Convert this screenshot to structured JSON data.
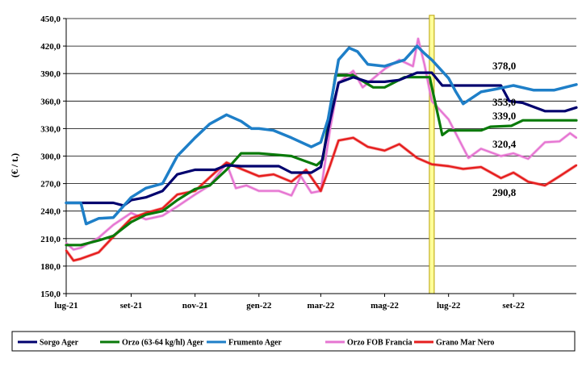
{
  "chart_data": {
    "type": "line",
    "title": "",
    "xlabel": "",
    "ylabel": "(€ / t.)",
    "ylim": [
      150,
      450
    ],
    "yticks": [
      "450,0",
      "420,0",
      "390,0",
      "360,0",
      "330,0",
      "300,0",
      "270,0",
      "240,0",
      "210,0",
      "180,0",
      "150,0"
    ],
    "xticks": [
      "lug-21",
      "set-21",
      "nov-21",
      "gen-22",
      "mar-22",
      "mag-22",
      "lug-22",
      "set-22"
    ],
    "x_range": [
      "2021-07-01",
      "2022-10-31"
    ],
    "marker": {
      "date": "2022-06-15",
      "color": "#FFFF99",
      "stroke": "#B8A000"
    },
    "grid": "horizontal",
    "legend_position": "bottom",
    "series": [
      {
        "name": "Sorgo Ager",
        "color": "#00006E",
        "end_label": "353,0",
        "data": [
          [
            "2021-07-01",
            249
          ],
          [
            "2021-08-01",
            249
          ],
          [
            "2021-08-15",
            249
          ],
          [
            "2021-08-25",
            246
          ],
          [
            "2021-09-01",
            252
          ],
          [
            "2021-09-15",
            255
          ],
          [
            "2021-10-01",
            262
          ],
          [
            "2021-10-15",
            280
          ],
          [
            "2021-11-01",
            285
          ],
          [
            "2021-11-20",
            285
          ],
          [
            "2021-12-01",
            290
          ],
          [
            "2021-12-15",
            289
          ],
          [
            "2022-01-01",
            289
          ],
          [
            "2022-01-20",
            289
          ],
          [
            "2022-02-01",
            282
          ],
          [
            "2022-02-20",
            282
          ],
          [
            "2022-03-01",
            288
          ],
          [
            "2022-03-10",
            340
          ],
          [
            "2022-03-18",
            380
          ],
          [
            "2022-04-01",
            386
          ],
          [
            "2022-04-15",
            381
          ],
          [
            "2022-05-01",
            381
          ],
          [
            "2022-05-15",
            383
          ],
          [
            "2022-06-01",
            391
          ],
          [
            "2022-06-15",
            391
          ],
          [
            "2022-06-25",
            377
          ],
          [
            "2022-07-15",
            377
          ],
          [
            "2022-08-20",
            377
          ],
          [
            "2022-08-28",
            360
          ],
          [
            "2022-09-10",
            358
          ],
          [
            "2022-10-01",
            349
          ],
          [
            "2022-10-20",
            349
          ],
          [
            "2022-10-31",
            353
          ]
        ]
      },
      {
        "name": "Orzo (63-64 kg/hl) Ager",
        "color": "#0A7A0A",
        "end_label": "339,0",
        "data": [
          [
            "2021-07-01",
            203
          ],
          [
            "2021-07-15",
            203
          ],
          [
            "2021-08-01",
            208
          ],
          [
            "2021-08-15",
            213
          ],
          [
            "2021-09-01",
            228
          ],
          [
            "2021-09-15",
            236
          ],
          [
            "2021-10-01",
            240
          ],
          [
            "2021-10-15",
            252
          ],
          [
            "2021-11-01",
            264
          ],
          [
            "2021-11-15",
            268
          ],
          [
            "2021-12-01",
            285
          ],
          [
            "2021-12-15",
            303
          ],
          [
            "2022-01-01",
            303
          ],
          [
            "2022-02-01",
            300
          ],
          [
            "2022-02-25",
            290
          ],
          [
            "2022-03-03",
            296
          ],
          [
            "2022-03-15",
            388
          ],
          [
            "2022-04-01",
            388
          ],
          [
            "2022-04-20",
            375
          ],
          [
            "2022-05-01",
            375
          ],
          [
            "2022-05-20",
            386
          ],
          [
            "2022-06-01",
            386
          ],
          [
            "2022-06-13",
            386
          ],
          [
            "2022-06-25",
            323
          ],
          [
            "2022-07-01",
            328
          ],
          [
            "2022-08-01",
            328
          ],
          [
            "2022-08-10",
            332
          ],
          [
            "2022-08-30",
            333
          ],
          [
            "2022-09-10",
            339
          ],
          [
            "2022-10-31",
            339
          ]
        ]
      },
      {
        "name": "Frumento Ager",
        "color": "#1E7FC8",
        "end_label": "378,0",
        "data": [
          [
            "2021-07-01",
            249
          ],
          [
            "2021-07-15",
            249
          ],
          [
            "2021-07-20",
            226
          ],
          [
            "2021-08-01",
            232
          ],
          [
            "2021-08-15",
            233
          ],
          [
            "2021-09-01",
            255
          ],
          [
            "2021-09-15",
            265
          ],
          [
            "2021-10-01",
            270
          ],
          [
            "2021-10-15",
            300
          ],
          [
            "2021-11-01",
            320
          ],
          [
            "2021-11-15",
            335
          ],
          [
            "2021-12-01",
            345
          ],
          [
            "2021-12-15",
            338
          ],
          [
            "2021-12-25",
            330
          ],
          [
            "2022-01-01",
            330
          ],
          [
            "2022-01-15",
            328
          ],
          [
            "2022-02-01",
            320
          ],
          [
            "2022-02-20",
            310
          ],
          [
            "2022-03-01",
            315
          ],
          [
            "2022-03-08",
            340
          ],
          [
            "2022-03-18",
            405
          ],
          [
            "2022-03-28",
            418
          ],
          [
            "2022-04-05",
            414
          ],
          [
            "2022-04-15",
            400
          ],
          [
            "2022-05-01",
            398
          ],
          [
            "2022-05-20",
            405
          ],
          [
            "2022-06-01",
            420
          ],
          [
            "2022-06-08",
            412
          ],
          [
            "2022-06-15",
            405
          ],
          [
            "2022-07-01",
            385
          ],
          [
            "2022-07-08",
            370
          ],
          [
            "2022-07-15",
            357
          ],
          [
            "2022-08-01",
            370
          ],
          [
            "2022-08-15",
            373
          ],
          [
            "2022-09-01",
            377
          ],
          [
            "2022-09-20",
            372
          ],
          [
            "2022-10-10",
            372
          ],
          [
            "2022-10-31",
            378
          ]
        ]
      },
      {
        "name": "Orzo FOB Francia",
        "color": "#E675D2",
        "end_label": "320,4",
        "data": [
          [
            "2021-07-01",
            205
          ],
          [
            "2021-07-08",
            198
          ],
          [
            "2021-07-15",
            200
          ],
          [
            "2021-08-01",
            211
          ],
          [
            "2021-08-15",
            225
          ],
          [
            "2021-09-01",
            238
          ],
          [
            "2021-09-15",
            231
          ],
          [
            "2021-10-01",
            235
          ],
          [
            "2021-10-15",
            245
          ],
          [
            "2021-11-01",
            258
          ],
          [
            "2021-11-15",
            268
          ],
          [
            "2021-12-01",
            292
          ],
          [
            "2021-12-10",
            265
          ],
          [
            "2021-12-20",
            268
          ],
          [
            "2022-01-01",
            262
          ],
          [
            "2022-01-20",
            262
          ],
          [
            "2022-02-01",
            257
          ],
          [
            "2022-02-10",
            278
          ],
          [
            "2022-02-20",
            260
          ],
          [
            "2022-03-01",
            262
          ],
          [
            "2022-03-10",
            330
          ],
          [
            "2022-03-18",
            380
          ],
          [
            "2022-04-01",
            393
          ],
          [
            "2022-04-10",
            375
          ],
          [
            "2022-05-01",
            395
          ],
          [
            "2022-05-15",
            405
          ],
          [
            "2022-05-28",
            398
          ],
          [
            "2022-06-02",
            428
          ],
          [
            "2022-06-08",
            400
          ],
          [
            "2022-06-15",
            360
          ],
          [
            "2022-07-01",
            340
          ],
          [
            "2022-07-10",
            320
          ],
          [
            "2022-07-20",
            298
          ],
          [
            "2022-08-01",
            308
          ],
          [
            "2022-08-20",
            300
          ],
          [
            "2022-09-01",
            303
          ],
          [
            "2022-09-15",
            297
          ],
          [
            "2022-10-01",
            315
          ],
          [
            "2022-10-15",
            316
          ],
          [
            "2022-10-25",
            325
          ],
          [
            "2022-10-31",
            320
          ]
        ]
      },
      {
        "name": "Grano Mar Nero",
        "color": "#E61E1E",
        "end_label": "290,8",
        "data": [
          [
            "2021-07-01",
            197
          ],
          [
            "2021-07-08",
            186
          ],
          [
            "2021-07-15",
            188
          ],
          [
            "2021-08-01",
            195
          ],
          [
            "2021-08-15",
            212
          ],
          [
            "2021-09-01",
            232
          ],
          [
            "2021-09-15",
            238
          ],
          [
            "2021-10-01",
            243
          ],
          [
            "2021-10-15",
            258
          ],
          [
            "2021-11-01",
            262
          ],
          [
            "2021-11-20",
            282
          ],
          [
            "2021-12-01",
            293
          ],
          [
            "2021-12-15",
            286
          ],
          [
            "2022-01-01",
            278
          ],
          [
            "2022-01-15",
            280
          ],
          [
            "2022-02-01",
            272
          ],
          [
            "2022-02-15",
            285
          ],
          [
            "2022-03-01",
            262
          ],
          [
            "2022-03-10",
            290
          ],
          [
            "2022-03-18",
            317
          ],
          [
            "2022-04-01",
            320
          ],
          [
            "2022-04-15",
            310
          ],
          [
            "2022-05-01",
            306
          ],
          [
            "2022-05-15",
            313
          ],
          [
            "2022-06-01",
            298
          ],
          [
            "2022-06-15",
            291
          ],
          [
            "2022-07-01",
            289
          ],
          [
            "2022-07-15",
            286
          ],
          [
            "2022-08-01",
            288
          ],
          [
            "2022-08-20",
            276
          ],
          [
            "2022-09-01",
            282
          ],
          [
            "2022-09-15",
            272
          ],
          [
            "2022-10-01",
            268
          ],
          [
            "2022-10-15",
            278
          ],
          [
            "2022-10-31",
            290
          ]
        ]
      }
    ]
  }
}
